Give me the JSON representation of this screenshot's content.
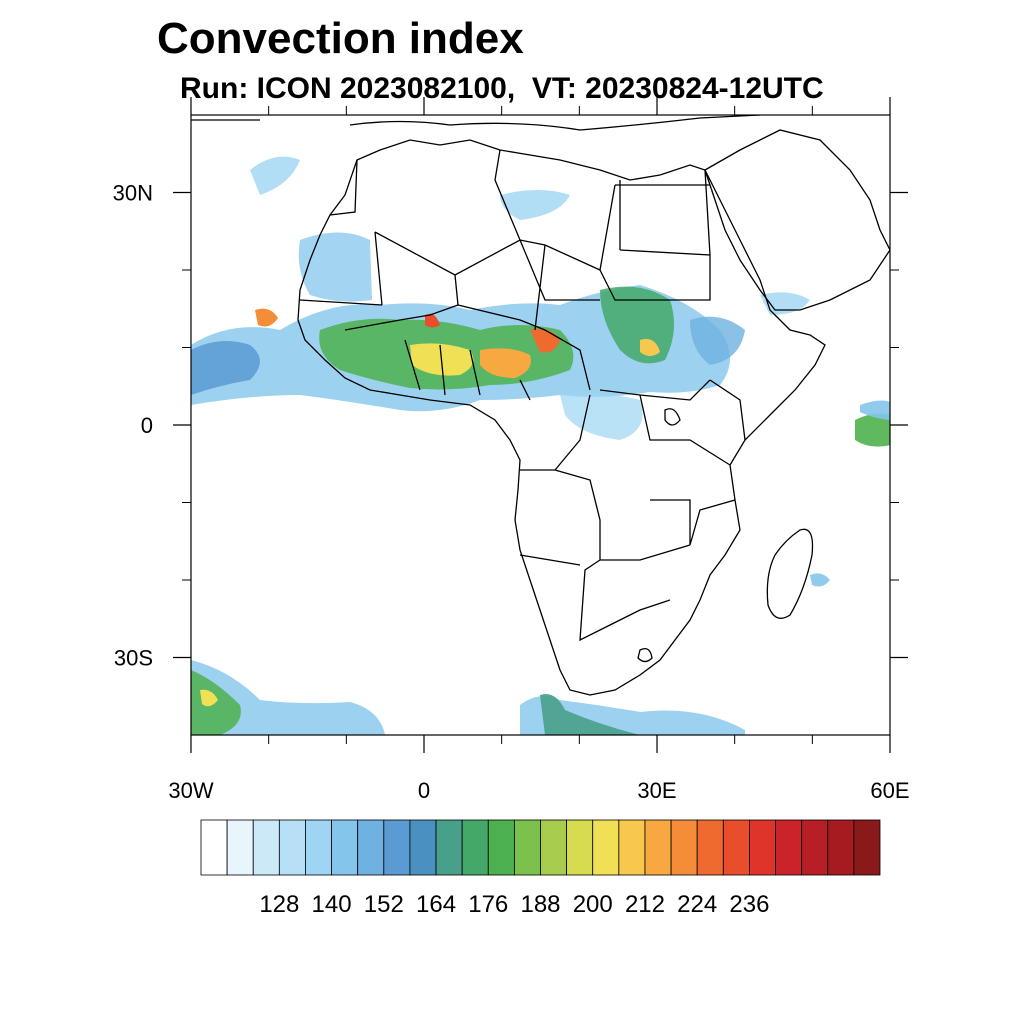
{
  "title": "Convection index",
  "subtitle": "Run: ICON 2023082100,  VT: 20230824-12UTC",
  "map": {
    "lon_range": [
      -30,
      60
    ],
    "lat_range": [
      -40,
      40
    ],
    "x_ticks": [
      {
        "lon": -30,
        "label": "30W"
      },
      {
        "lon": 0,
        "label": "0"
      },
      {
        "lon": 30,
        "label": "30E"
      },
      {
        "lon": 60,
        "label": "60E"
      }
    ],
    "y_ticks": [
      {
        "lat": 30,
        "label": "30N"
      },
      {
        "lat": 0,
        "label": "0"
      },
      {
        "lat": -30,
        "label": "30S"
      }
    ],
    "minor_x_lons": [
      -20,
      -10,
      10,
      20,
      40,
      50
    ],
    "minor_y_lats": [
      20,
      10,
      -10,
      -20
    ]
  },
  "colorbar": {
    "colors": [
      "#ffffff",
      "#e8f5fc",
      "#cce9f8",
      "#b5e0f5",
      "#9dd5f2",
      "#84c5ec",
      "#6fb1e1",
      "#5b9bd3",
      "#4a90c0",
      "#48a08a",
      "#44a868",
      "#4cb14e",
      "#7cc04d",
      "#a8cc4d",
      "#d6db4f",
      "#efe055",
      "#f8c84e",
      "#f7a840",
      "#f48c38",
      "#ef6a2e",
      "#e84e2b",
      "#df342a",
      "#cc2229",
      "#b81e25",
      "#a61b20",
      "#8a1a1a"
    ],
    "labels": [
      "128",
      "140",
      "152",
      "164",
      "176",
      "188",
      "200",
      "212",
      "224",
      "236"
    ]
  }
}
